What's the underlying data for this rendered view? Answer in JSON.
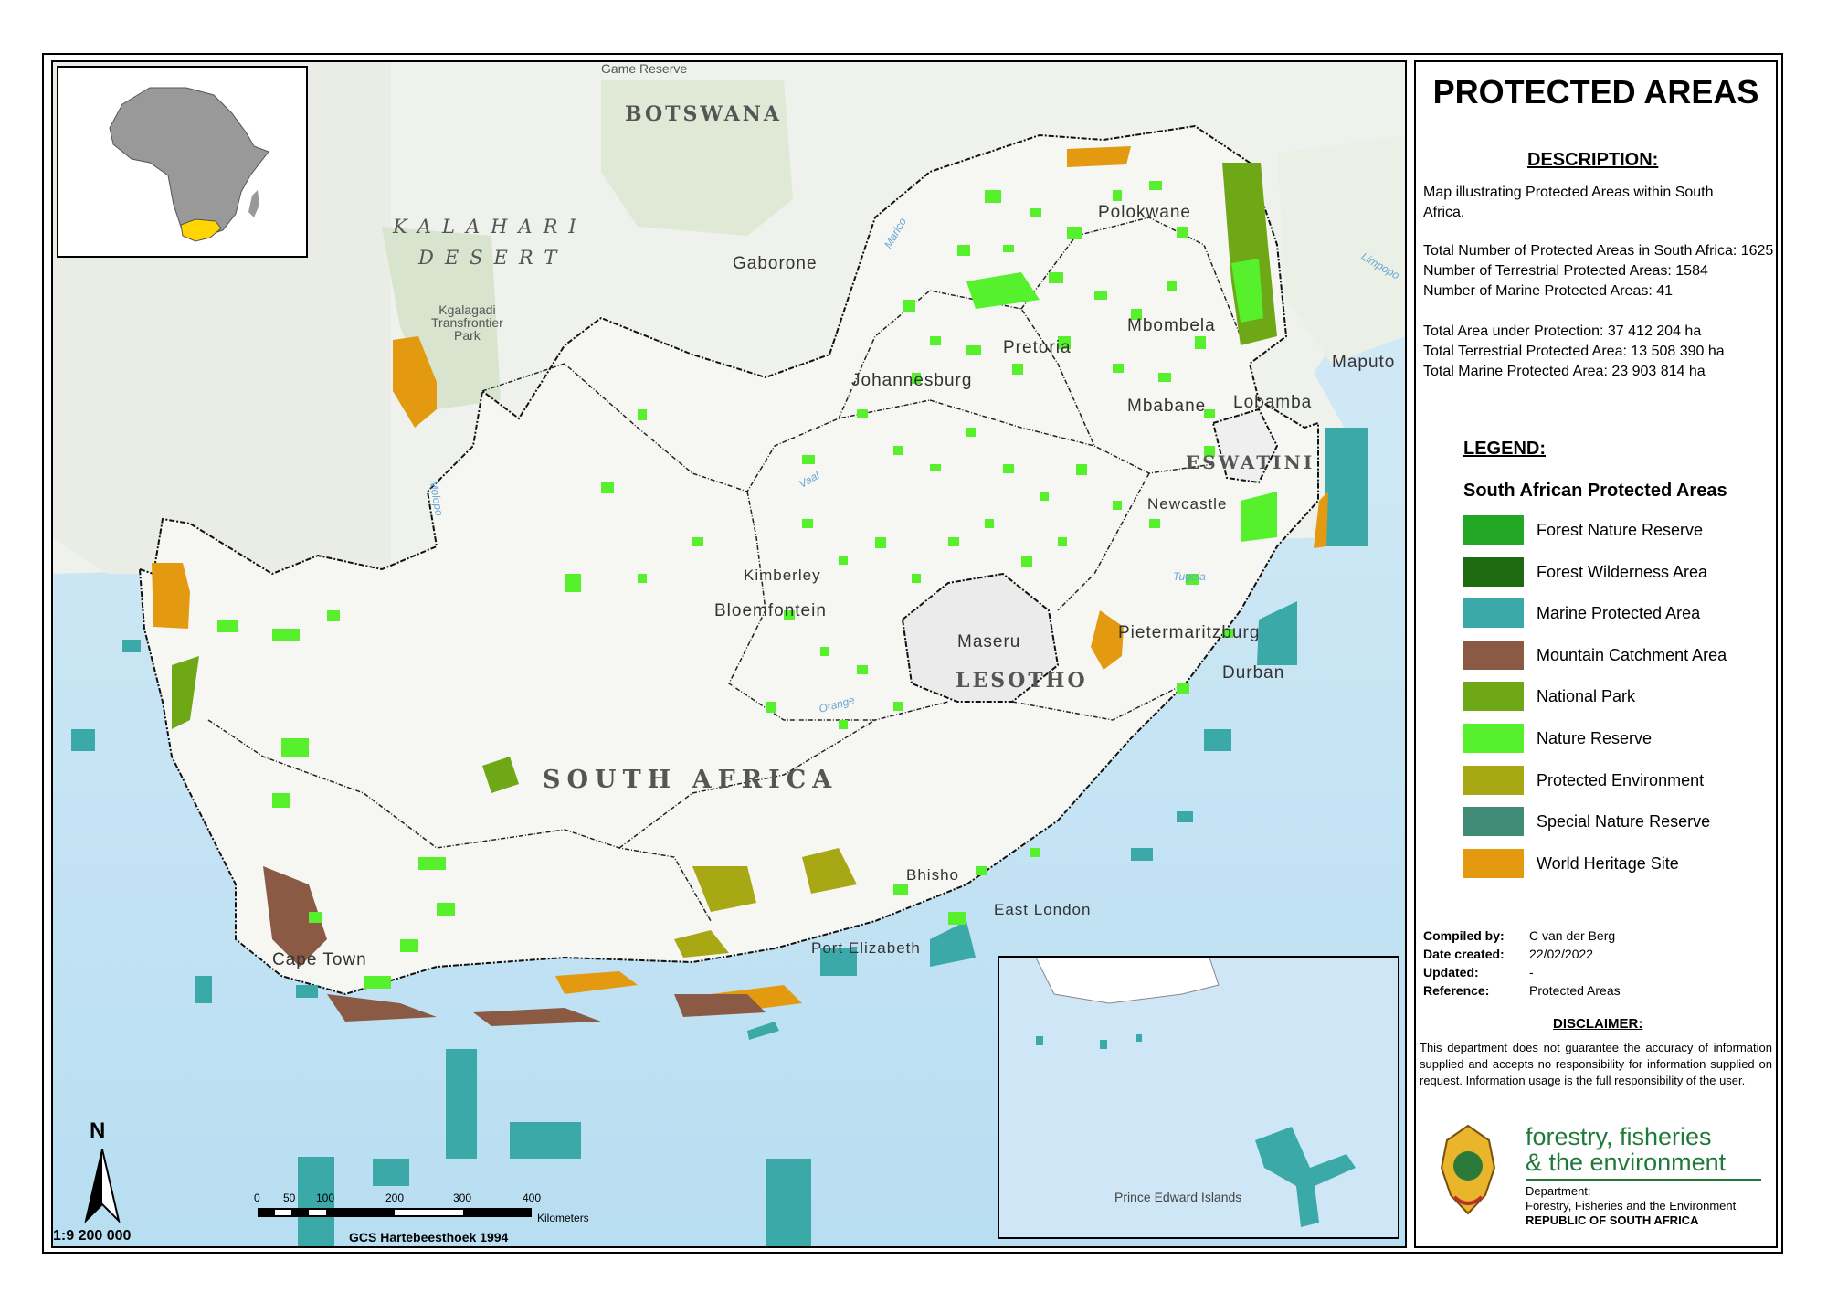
{
  "title": "PROTECTED AREAS",
  "description": {
    "heading": "DESCRIPTION:",
    "text": "Map illustrating Protected Areas within South Africa.",
    "stats1": [
      "Total Number of Protected Areas in South Africa: 1625",
      "Number of Terrestrial Protected Areas: 1584",
      "Number of Marine Protected Areas: 41"
    ],
    "stats2": [
      "Total Area under Protection: 37 412 204 ha",
      "Total Terrestrial Protected Area: 13 508 390 ha",
      "Total Marine Protected Area: 23 903 814 ha"
    ]
  },
  "legend": {
    "heading": "LEGEND:",
    "subheading": "South African Protected Areas",
    "items": [
      {
        "label": "Forest Nature Reserve",
        "color": "#22a824"
      },
      {
        "label": "Forest Wilderness Area",
        "color": "#1e6b12"
      },
      {
        "label": "Marine Protected Area",
        "color": "#3aa9a8"
      },
      {
        "label": "Mountain Catchment Area",
        "color": "#8a5a44"
      },
      {
        "label": "National Park",
        "color": "#6fa816"
      },
      {
        "label": "Nature Reserve",
        "color": "#56f02c"
      },
      {
        "label": "Protected Environment",
        "color": "#a8a814"
      },
      {
        "label": "Special Nature Reserve",
        "color": "#3f8b76"
      },
      {
        "label": "World Heritage Site",
        "color": "#e39a10"
      }
    ]
  },
  "metadata": [
    {
      "key": "Compiled by:",
      "value": "C van der Berg"
    },
    {
      "key": "Date created:",
      "value": "22/02/2022"
    },
    {
      "key": "Updated:",
      "value": "-"
    },
    {
      "key": "Reference:",
      "value": "Protected Areas"
    }
  ],
  "disclaimer": {
    "heading": "DISCLAIMER:",
    "text": "This department does not guarantee the accuracy of information supplied and accepts no responsibility for information supplied on request.  Information usage is the full responsibility of the user."
  },
  "logo": {
    "line1": "forestry, fisheries",
    "line2": "& the environment",
    "dept1": "Department:",
    "dept2": "Forestry, Fisheries and the Environment",
    "dept3": "REPUBLIC OF SOUTH AFRICA"
  },
  "map_labels": {
    "botswana": "BOTSWANA",
    "game_reserve": "Game Reserve",
    "kalahari": "KALAHARI",
    "desert": "DESERT",
    "kgalagadi": [
      "Kgalagadi",
      "Transfrontier",
      "Park"
    ],
    "gaborone": "Gaborone",
    "polokwane": "Polokwane",
    "mbombela": "Mbombela",
    "pretoria": "Pretoria",
    "johannesburg": "Johannesburg",
    "maputo": "Maputo",
    "mbabane": "Mbabane",
    "lobamba": "Lobamba",
    "eswatini": "ESWATINI",
    "newcastle": "Newcastle",
    "kimberley": "Kimberley",
    "bloemfontein": "Bloemfontein",
    "maseru": "Maseru",
    "lesotho": "LESOTHO",
    "pietermaritzburg": "Pietermaritzburg",
    "durban": "Durban",
    "south_africa": "SOUTH AFRICA",
    "bhisho": "Bhisho",
    "east_london": "East London",
    "cape_town": "Cape Town",
    "port_elizabeth": "Port Elizabeth",
    "prince_edward": "Prince Edward Islands",
    "rivers": {
      "marico": "Marico",
      "limpopo": "Limpopo",
      "molopo": "Molopo",
      "vaal": "Vaal",
      "orange": "Orange",
      "tugela": "Tugela"
    }
  },
  "north_label": "N",
  "scale": {
    "ratio": "1:9 200 000",
    "ticks": [
      "0",
      "50",
      "100",
      "200",
      "300",
      "400"
    ],
    "unit": "Kilometers",
    "crs": "GCS Hartebeesthoek 1994"
  }
}
